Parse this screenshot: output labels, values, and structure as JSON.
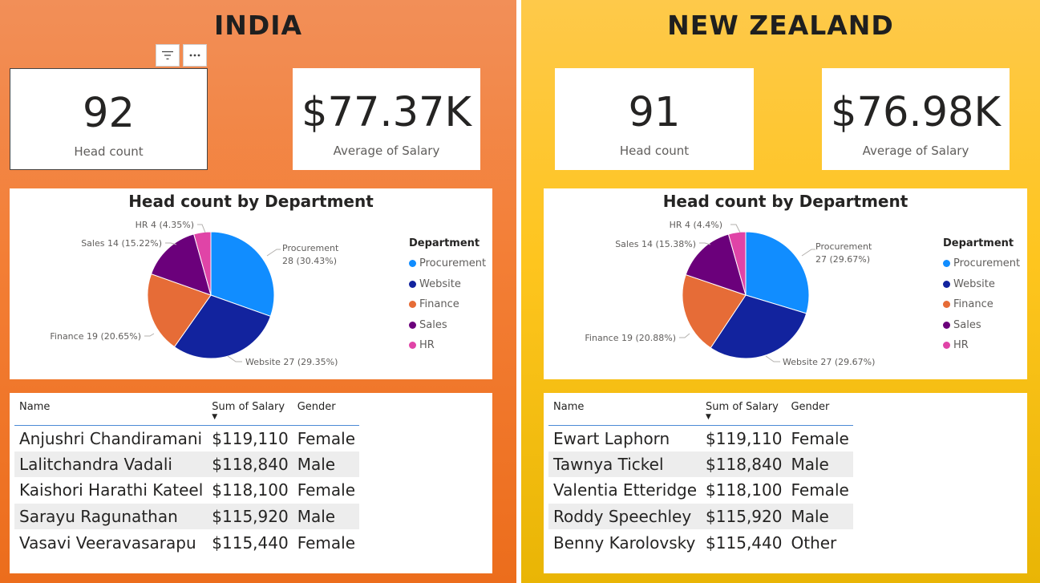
{
  "colors": {
    "procurement": "#118dff",
    "website": "#12239e",
    "finance": "#e66c37",
    "sales": "#6b007b",
    "hr": "#e044a7"
  },
  "visual_header": {
    "filter_icon": "filter-icon",
    "more_icon": "more-options-icon"
  },
  "india": {
    "title": "INDIA",
    "headcount": {
      "value": "92",
      "label": "Head count"
    },
    "salary": {
      "value": "$77.37K",
      "label": "Average of Salary"
    },
    "chart_data": {
      "type": "pie",
      "title": "Head count by Department",
      "legend_title": "Department",
      "legend_position": "right",
      "categories": [
        "Procurement",
        "Website",
        "Finance",
        "Sales",
        "HR"
      ],
      "values": [
        28,
        27,
        19,
        14,
        4
      ],
      "percentages": [
        "30.43%",
        "29.35%",
        "20.65%",
        "15.22%",
        "4.35%"
      ],
      "labels": {
        "procurement_a": "Procurement",
        "procurement_b": "28 (30.43%)",
        "website": "Website 27 (29.35%)",
        "finance": "Finance 19 (20.65%)",
        "sales": "Sales 14 (15.22%)",
        "hr": "HR 4 (4.35%)"
      }
    },
    "table": {
      "headers": [
        "Name",
        "Sum of Salary",
        "Gender"
      ],
      "rows": [
        [
          "Anjushri Chandiramani",
          "$119,110",
          "Female"
        ],
        [
          "Lalitchandra Vadali",
          "$118,840",
          "Male"
        ],
        [
          "Kaishori Harathi Kateel",
          "$118,100",
          "Female"
        ],
        [
          "Sarayu Ragunathan",
          "$115,920",
          "Male"
        ],
        [
          "Vasavi Veeravasarapu",
          "$115,440",
          "Female"
        ]
      ]
    }
  },
  "nz": {
    "title": "NEW ZEALAND",
    "headcount": {
      "value": "91",
      "label": "Head count"
    },
    "salary": {
      "value": "$76.98K",
      "label": "Average of Salary"
    },
    "chart_data": {
      "type": "pie",
      "title": "Head count by Department",
      "legend_title": "Department",
      "legend_position": "right",
      "categories": [
        "Procurement",
        "Website",
        "Finance",
        "Sales",
        "HR"
      ],
      "values": [
        27,
        27,
        19,
        14,
        4
      ],
      "percentages": [
        "29.67%",
        "29.67%",
        "20.88%",
        "15.38%",
        "4.4%"
      ],
      "labels": {
        "procurement_a": "Procurement",
        "procurement_b": "27 (29.67%)",
        "website": "Website 27 (29.67%)",
        "finance": "Finance 19 (20.88%)",
        "sales": "Sales 14 (15.38%)",
        "hr": "HR 4 (4.4%)"
      }
    },
    "table": {
      "headers": [
        "Name",
        "Sum of Salary",
        "Gender"
      ],
      "rows": [
        [
          "Ewart Laphorn",
          "$119,110",
          "Female"
        ],
        [
          "Tawnya Tickel",
          "$118,840",
          "Male"
        ],
        [
          "Valentia Etteridge",
          "$118,100",
          "Female"
        ],
        [
          "Roddy Speechley",
          "$115,920",
          "Male"
        ],
        [
          "Benny Karolovsky",
          "$115,440",
          "Other"
        ]
      ]
    }
  }
}
